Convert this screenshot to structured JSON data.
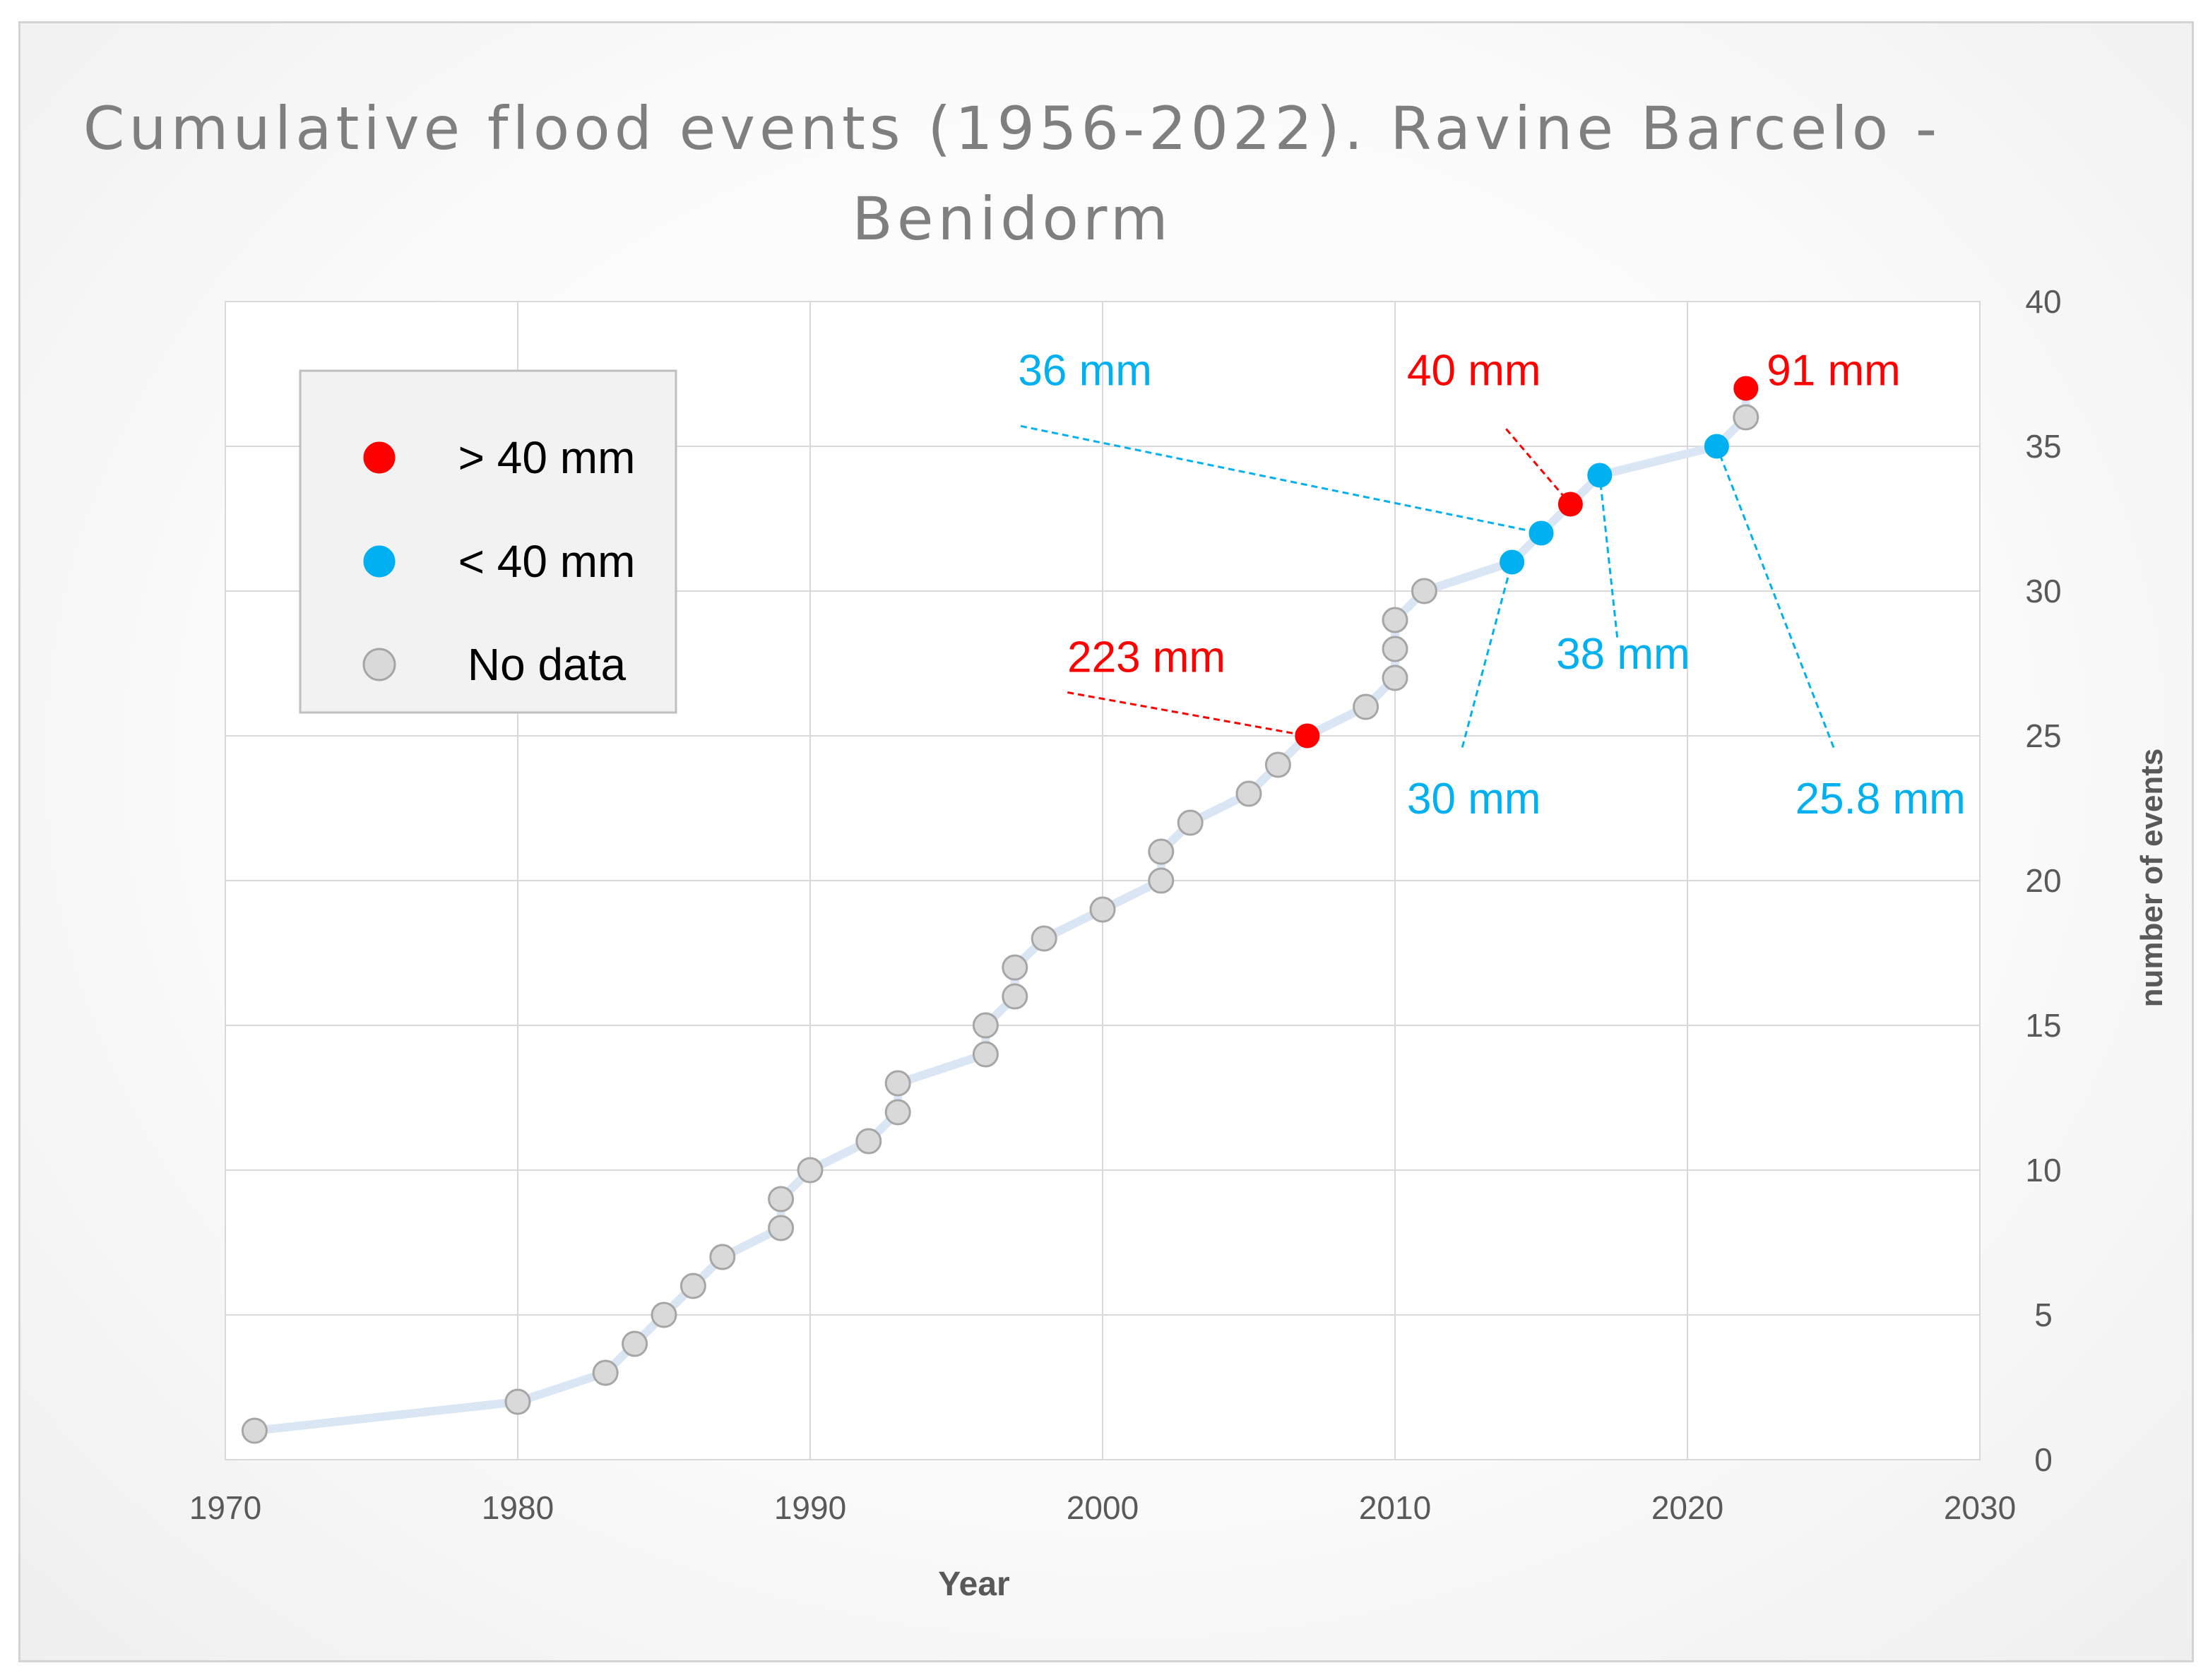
{
  "chart_data": {
    "type": "scatter",
    "title_line1": "Cumulative flood events (1956-2022). Ravine Barcelo -",
    "title_line2": "Benidorm",
    "xlabel": "Year",
    "ylabel": "number of events",
    "xlim": [
      1970,
      2030
    ],
    "ylim": [
      0,
      40
    ],
    "x_ticks": [
      1970,
      1980,
      1990,
      2000,
      2010,
      2020,
      2030
    ],
    "y_ticks": [
      0,
      5,
      10,
      15,
      20,
      25,
      30,
      35,
      40
    ],
    "grid": true,
    "legend_position": "top-left",
    "legend": [
      {
        "label": "> 40 mm",
        "category": "high"
      },
      {
        "label": "< 40 mm",
        "category": "low"
      },
      {
        "label": "No data",
        "category": "nodata"
      }
    ],
    "colors": {
      "high": "#ff0000",
      "low": "#00b0f0",
      "nodata": "#d9d9d9",
      "marker_edge": "#a6a6a6",
      "line": "#dae6f4",
      "grid": "#d9d9d9",
      "axis_text": "#595959"
    },
    "points": [
      {
        "x": 1971,
        "y": 1,
        "category": "nodata"
      },
      {
        "x": 1980,
        "y": 2,
        "category": "nodata"
      },
      {
        "x": 1983,
        "y": 3,
        "category": "nodata"
      },
      {
        "x": 1984,
        "y": 4,
        "category": "nodata"
      },
      {
        "x": 1985,
        "y": 5,
        "category": "nodata"
      },
      {
        "x": 1986,
        "y": 6,
        "category": "nodata"
      },
      {
        "x": 1987,
        "y": 7,
        "category": "nodata"
      },
      {
        "x": 1989,
        "y": 8,
        "category": "nodata"
      },
      {
        "x": 1989,
        "y": 9,
        "category": "nodata"
      },
      {
        "x": 1990,
        "y": 10,
        "category": "nodata"
      },
      {
        "x": 1992,
        "y": 11,
        "category": "nodata"
      },
      {
        "x": 1993,
        "y": 12,
        "category": "nodata"
      },
      {
        "x": 1993,
        "y": 13,
        "category": "nodata"
      },
      {
        "x": 1996,
        "y": 14,
        "category": "nodata"
      },
      {
        "x": 1996,
        "y": 15,
        "category": "nodata"
      },
      {
        "x": 1997,
        "y": 16,
        "category": "nodata"
      },
      {
        "x": 1997,
        "y": 17,
        "category": "nodata"
      },
      {
        "x": 1998,
        "y": 18,
        "category": "nodata"
      },
      {
        "x": 2000,
        "y": 19,
        "category": "nodata"
      },
      {
        "x": 2002,
        "y": 20,
        "category": "nodata"
      },
      {
        "x": 2002,
        "y": 21,
        "category": "nodata"
      },
      {
        "x": 2003,
        "y": 22,
        "category": "nodata"
      },
      {
        "x": 2005,
        "y": 23,
        "category": "nodata"
      },
      {
        "x": 2006,
        "y": 24,
        "category": "nodata"
      },
      {
        "x": 2007,
        "y": 25,
        "category": "high"
      },
      {
        "x": 2009,
        "y": 26,
        "category": "nodata"
      },
      {
        "x": 2010,
        "y": 27,
        "category": "nodata"
      },
      {
        "x": 2010,
        "y": 28,
        "category": "nodata"
      },
      {
        "x": 2010,
        "y": 29,
        "category": "nodata"
      },
      {
        "x": 2011,
        "y": 30,
        "category": "nodata"
      },
      {
        "x": 2014,
        "y": 31,
        "category": "low"
      },
      {
        "x": 2015,
        "y": 32,
        "category": "low"
      },
      {
        "x": 2016,
        "y": 33,
        "category": "high"
      },
      {
        "x": 2017,
        "y": 34,
        "category": "low"
      },
      {
        "x": 2021,
        "y": 35,
        "category": "low"
      },
      {
        "x": 2022,
        "y": 36,
        "category": "nodata"
      },
      {
        "x": 2022,
        "y": 37,
        "category": "high"
      }
    ],
    "annotations": [
      {
        "text": "223 mm",
        "category": "high",
        "point": {
          "x": 2007,
          "y": 25
        },
        "label_at": {
          "x": 2001.5,
          "y": 27.7
        },
        "line_from": {
          "x": 1998.8,
          "y": 26.5
        }
      },
      {
        "text": "36 mm",
        "category": "low",
        "point": {
          "x": 2015,
          "y": 32
        },
        "label_at": {
          "x": 1999.4,
          "y": 37.6
        },
        "line_from": {
          "x": 1997.2,
          "y": 35.7
        }
      },
      {
        "text": "40 mm",
        "category": "high",
        "point": {
          "x": 2016,
          "y": 33
        },
        "label_at": {
          "x": 2012.7,
          "y": 37.6
        },
        "line_from": {
          "x": 2013.8,
          "y": 35.6
        }
      },
      {
        "text": "91 mm",
        "category": "high",
        "point": {
          "x": 2022,
          "y": 37
        },
        "label_at": {
          "x": 2025.0,
          "y": 37.6
        },
        "line_from": {
          "x": 2022.4,
          "y": 37.0
        }
      },
      {
        "text": "30 mm",
        "category": "low",
        "point": {
          "x": 2014,
          "y": 31
        },
        "label_at": {
          "x": 2012.7,
          "y": 22.8
        },
        "line_from": {
          "x": 2012.3,
          "y": 24.6
        }
      },
      {
        "text": "38 mm",
        "category": "low",
        "point": {
          "x": 2017,
          "y": 34
        },
        "label_at": {
          "x": 2017.8,
          "y": 27.8
        },
        "line_from": {
          "x": 2017.6,
          "y": 28.4
        }
      },
      {
        "text": "25.8 mm",
        "category": "low",
        "point": {
          "x": 2021,
          "y": 35
        },
        "label_at": {
          "x": 2026.6,
          "y": 22.8
        },
        "line_from": {
          "x": 2025.0,
          "y": 24.6
        }
      }
    ]
  }
}
